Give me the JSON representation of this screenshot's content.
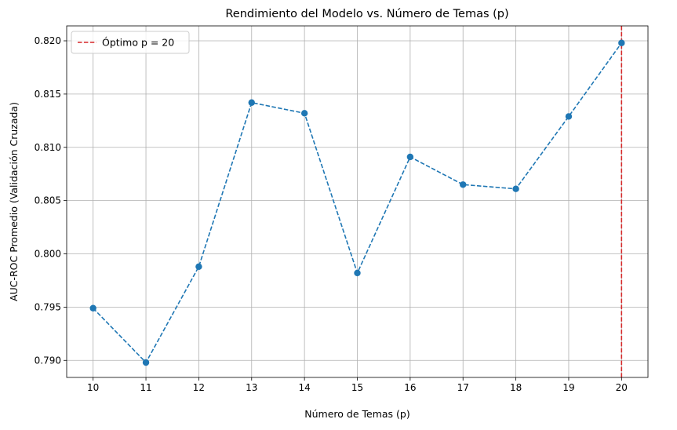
{
  "chart_data": {
    "type": "line",
    "title": "Rendimiento del Modelo vs. Número de Temas (p)",
    "xlabel": "Número de Temas (p)",
    "ylabel": "AUC-ROC Promedio (Validación Cruzada)",
    "x": [
      10,
      11,
      12,
      13,
      14,
      15,
      16,
      17,
      18,
      19,
      20
    ],
    "series": [
      {
        "values": [
          0.7949,
          0.7898,
          0.7988,
          0.8142,
          0.8132,
          0.7982,
          0.8091,
          0.8065,
          0.8061,
          0.8129,
          0.8198
        ],
        "color": "#1f77b4",
        "line_style": "dashed",
        "marker": "circle"
      }
    ],
    "xlim": [
      9.5,
      20.5
    ],
    "ylim": [
      0.7884,
      0.8214
    ],
    "xticks": [
      "10",
      "11",
      "12",
      "13",
      "14",
      "15",
      "16",
      "17",
      "18",
      "19",
      "20"
    ],
    "yticks": [
      "0.790",
      "0.795",
      "0.800",
      "0.805",
      "0.810",
      "0.815",
      "0.820"
    ],
    "ytick_values": [
      0.79,
      0.795,
      0.8,
      0.805,
      0.81,
      0.815,
      0.82
    ],
    "annotations": [
      {
        "type": "vline",
        "x": 20,
        "color": "#d62728",
        "line_style": "dashed",
        "label": "Óptimo p = 20"
      }
    ],
    "grid": true,
    "legend": {
      "position": "top-left",
      "entries": [
        "Óptimo p = 20"
      ]
    }
  }
}
